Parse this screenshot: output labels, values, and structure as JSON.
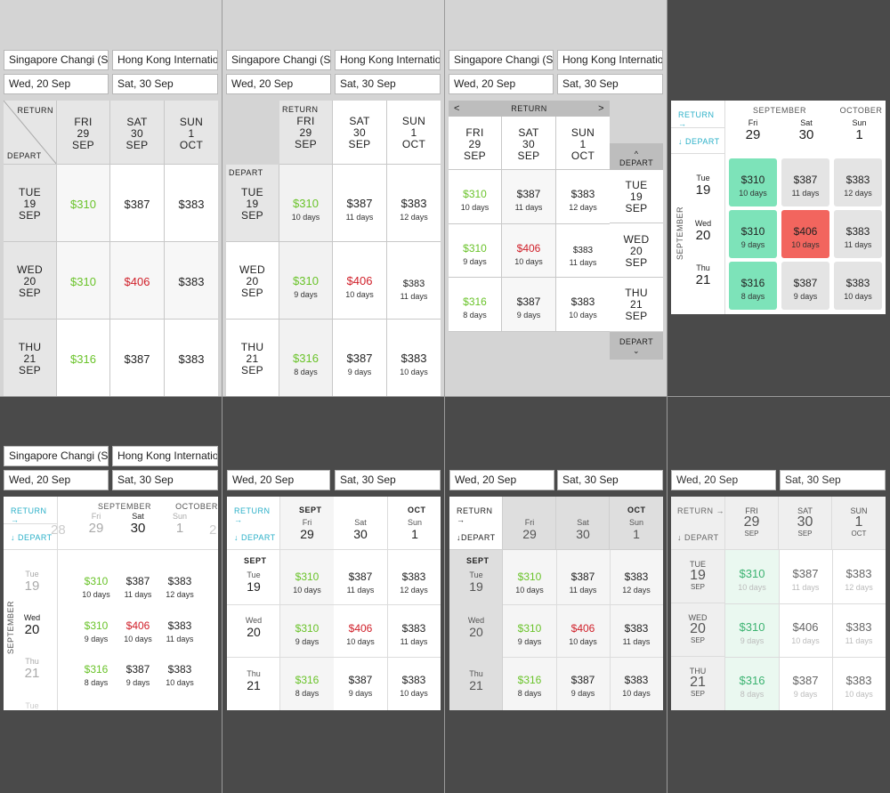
{
  "origin": "Singapore Changi (SIN)",
  "destination": "Hong Kong Internatio...",
  "depart_date": "Wed, 20 Sep",
  "return_date": "Sat, 30 Sep",
  "labels": {
    "return": "RETURN",
    "depart": "DEPART",
    "return_arrow": "RETURN →",
    "depart_arrow": "↓ DEPART",
    "depart_arrow_tight": "↓DEPART",
    "september": "SEPTEMBER",
    "october": "OCTOBER",
    "sept": "SEPT",
    "oct": "OCT",
    "september_vertical": "SEPTEMBER",
    "up_chevron": "^",
    "down_chevron": "⌄",
    "left_chevron": "<",
    "right_chevron": ">"
  },
  "return_days": [
    {
      "dow": "FRI",
      "num": "29",
      "mon": "SEP",
      "dow_s": "Fri",
      "mon_full": "SEP"
    },
    {
      "dow": "SAT",
      "num": "30",
      "mon": "SEP",
      "dow_s": "Sat",
      "mon_full": "SEP"
    },
    {
      "dow": "SUN",
      "num": "1",
      "mon": "OCT",
      "dow_s": "Sun",
      "mon_full": "OCT"
    }
  ],
  "depart_days": [
    {
      "dow": "TUE",
      "num": "19",
      "mon": "SEP",
      "dow_s": "Tue"
    },
    {
      "dow": "WED",
      "num": "20",
      "mon": "SEP",
      "dow_s": "Wed"
    },
    {
      "dow": "THU",
      "num": "21",
      "mon": "SEP",
      "dow_s": "Thu"
    }
  ],
  "fares": [
    [
      {
        "price": "$310",
        "days": "10 days",
        "tone": "green"
      },
      {
        "price": "$387",
        "days": "11 days",
        "tone": "normal"
      },
      {
        "price": "$383",
        "days": "12 days",
        "tone": "normal"
      }
    ],
    [
      {
        "price": "$310",
        "days": "9 days",
        "tone": "green"
      },
      {
        "price": "$406",
        "days": "10 days",
        "tone": "red"
      },
      {
        "price": "$383",
        "days": "11 days",
        "tone": "normal"
      }
    ],
    [
      {
        "price": "$316",
        "days": "8 days",
        "tone": "green"
      },
      {
        "price": "$387",
        "days": "9 days",
        "tone": "normal"
      },
      {
        "price": "$383",
        "days": "10 days",
        "tone": "normal"
      }
    ]
  ],
  "panel5_extra": {
    "prev_num": "28",
    "next_num": "2",
    "extra_row": "Tue"
  },
  "colors": {
    "green": "#6ac32a",
    "red": "#d0202a",
    "teal_cell": "#7de3b9",
    "red_cell": "#f2655e",
    "accent": "#2bb0c8"
  }
}
